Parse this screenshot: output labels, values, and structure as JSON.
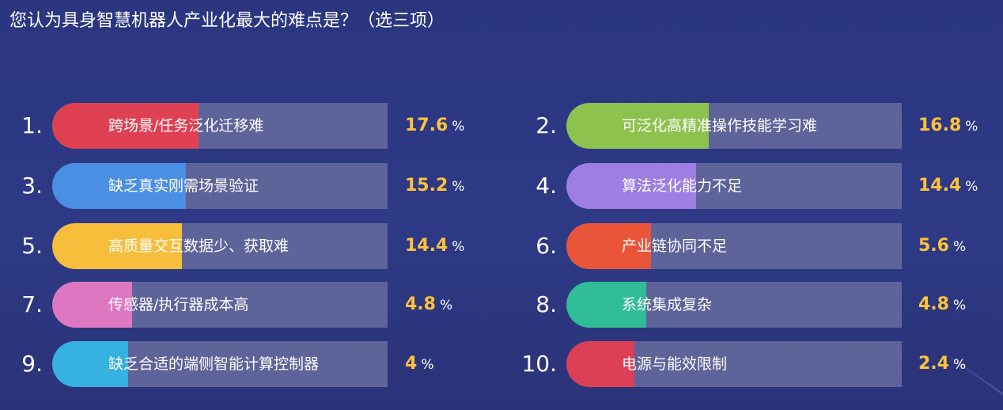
{
  "title": "您认为具身智慧机器人产业化最大的难点是？（选三项）",
  "percent_symbol": "%",
  "chart_data": {
    "type": "bar",
    "title": "您认为具身智慧机器人产业化最大的难点是？（选三项）",
    "unit": "%",
    "max_value": 100,
    "items": [
      {
        "rank": "1.",
        "label": "跨场景/任务泛化迁移难",
        "value": 17.6,
        "display": "17.6",
        "color": "#e04152"
      },
      {
        "rank": "2.",
        "label": "可泛化高精准操作技能学习难",
        "value": 16.8,
        "display": "16.8",
        "color": "#8dc24f"
      },
      {
        "rank": "3.",
        "label": "缺乏真实刚需场景验证",
        "value": 15.2,
        "display": "15.2",
        "color": "#4a8fe3"
      },
      {
        "rank": "4.",
        "label": "算法泛化能力不足",
        "value": 14.4,
        "display": "14.4",
        "color": "#9e7ee0"
      },
      {
        "rank": "5.",
        "label": "高质量交互数据少、获取难",
        "value": 14.4,
        "display": "14.4",
        "color": "#f7be3b"
      },
      {
        "rank": "6.",
        "label": "产业链协同不足",
        "value": 5.6,
        "display": "5.6",
        "color": "#ea5539"
      },
      {
        "rank": "7.",
        "label": "传感器/执行器成本高",
        "value": 4.8,
        "display": "4.8",
        "color": "#de77c2"
      },
      {
        "rank": "8.",
        "label": "系统集成复杂",
        "value": 4.8,
        "display": "4.8",
        "color": "#2fbc97"
      },
      {
        "rank": "9.",
        "label": "缺乏合适的端侧智能计算控制器",
        "value": 4,
        "display": "4",
        "color": "#36b1e0"
      },
      {
        "rank": "10.",
        "label": "电源与能效限制",
        "value": 2.4,
        "display": "2.4",
        "color": "#dc3f56"
      }
    ]
  }
}
